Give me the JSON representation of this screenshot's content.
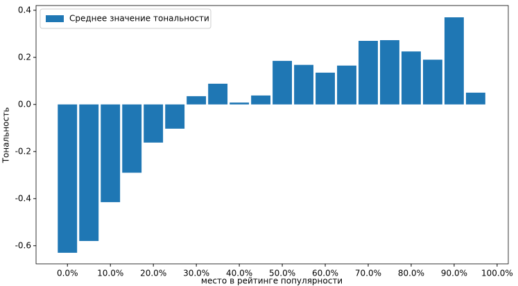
{
  "chart_data": {
    "type": "bar",
    "xlabel": "место в рейтинге популярности",
    "ylabel": "Тональность",
    "x": [
      0,
      5,
      10,
      15,
      20,
      25,
      30,
      35,
      40,
      45,
      50,
      55,
      60,
      65,
      70,
      75,
      80,
      85,
      90,
      95
    ],
    "series": [
      {
        "name": "Среднее значение тональности",
        "color": "#1f77b4",
        "values": [
          -0.63,
          -0.58,
          -0.415,
          -0.29,
          -0.162,
          -0.103,
          0.035,
          0.088,
          0.008,
          0.038,
          0.185,
          0.168,
          0.135,
          0.165,
          0.27,
          0.273,
          0.225,
          0.19,
          0.37,
          0.05
        ]
      }
    ],
    "xlim": [
      -7.3,
      102.6
    ],
    "xticks": [
      {
        "value": 0,
        "label": "0.0%"
      },
      {
        "value": 10,
        "label": "10.0%"
      },
      {
        "value": 20,
        "label": "20.0%"
      },
      {
        "value": 30,
        "label": "30.0%"
      },
      {
        "value": 40,
        "label": "40.0%"
      },
      {
        "value": 50,
        "label": "50.0%"
      },
      {
        "value": 60,
        "label": "60.0%"
      },
      {
        "value": 70,
        "label": "70.0%"
      },
      {
        "value": 80,
        "label": "80.0%"
      },
      {
        "value": 90,
        "label": "90.0%"
      },
      {
        "value": 100,
        "label": "100.0%"
      }
    ],
    "ylim": [
      -0.677,
      0.42
    ],
    "yticks": [
      {
        "value": -0.6,
        "label": "-0.6"
      },
      {
        "value": -0.4,
        "label": "-0.4"
      },
      {
        "value": -0.2,
        "label": "-0.2"
      },
      {
        "value": 0,
        "label": "0.0"
      },
      {
        "value": 0.2,
        "label": "0.2"
      },
      {
        "value": 0.4,
        "label": "0.4"
      }
    ],
    "legend": "upper left"
  }
}
